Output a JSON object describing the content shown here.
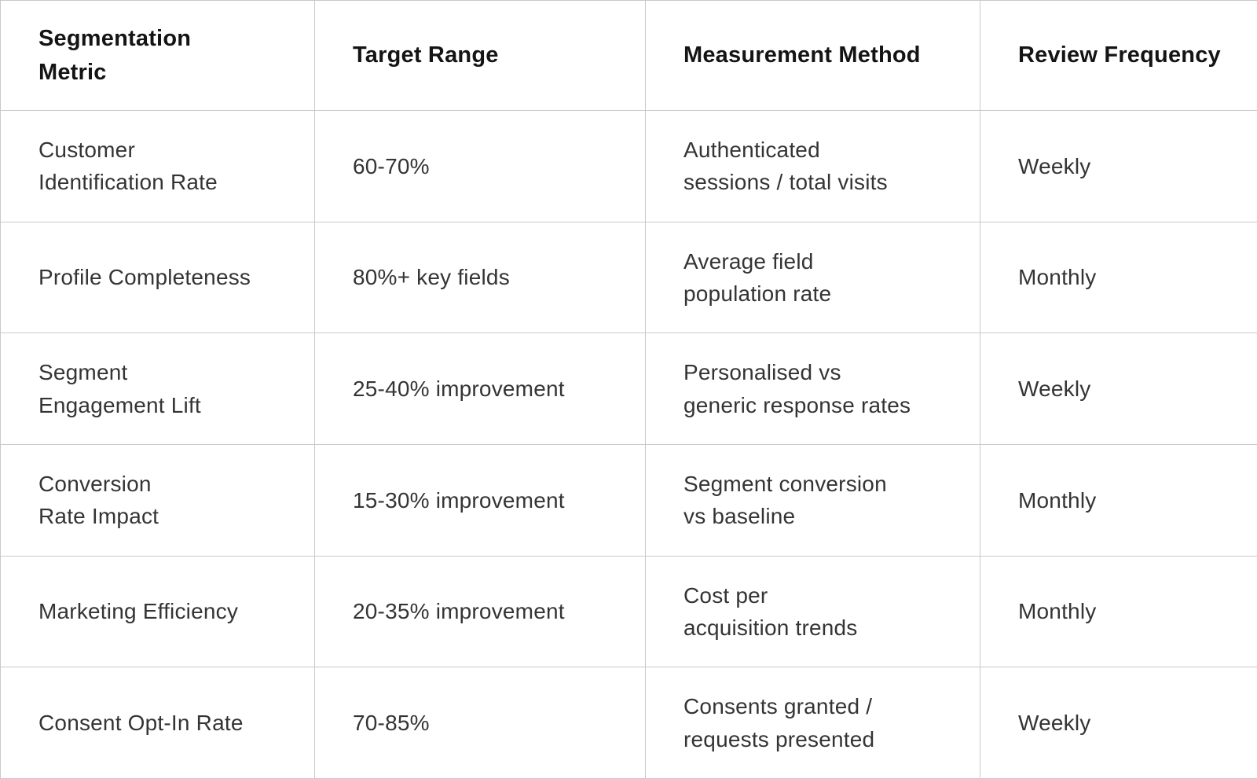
{
  "colors": {
    "background": "#ffffff",
    "border": "#c9c9c9",
    "header_text": "#141414",
    "body_text": "#343434"
  },
  "table": {
    "headers": [
      "Segmentation\nMetric",
      "Target Range",
      "Measurement Method",
      "Review Frequency"
    ],
    "rows": [
      {
        "metric": "Customer\nIdentification Rate",
        "target_range": "60-70%",
        "measurement_method": "Authenticated\nsessions / total visits",
        "review_frequency": "Weekly"
      },
      {
        "metric": "Profile Completeness",
        "target_range": "80%+ key fields",
        "measurement_method": "Average field\npopulation rate",
        "review_frequency": "Monthly"
      },
      {
        "metric": "Segment\nEngagement Lift",
        "target_range": "25-40% improvement",
        "measurement_method": "Personalised vs\ngeneric response rates",
        "review_frequency": "Weekly"
      },
      {
        "metric": "Conversion\nRate Impact",
        "target_range": "15-30% improvement",
        "measurement_method": "Segment conversion\nvs baseline",
        "review_frequency": "Monthly"
      },
      {
        "metric": "Marketing Efficiency",
        "target_range": "20-35% improvement",
        "measurement_method": "Cost per\nacquisition trends",
        "review_frequency": "Monthly"
      },
      {
        "metric": "Consent Opt-In Rate",
        "target_range": "70-85%",
        "measurement_method": "Consents granted /\nrequests presented",
        "review_frequency": "Weekly"
      }
    ]
  }
}
